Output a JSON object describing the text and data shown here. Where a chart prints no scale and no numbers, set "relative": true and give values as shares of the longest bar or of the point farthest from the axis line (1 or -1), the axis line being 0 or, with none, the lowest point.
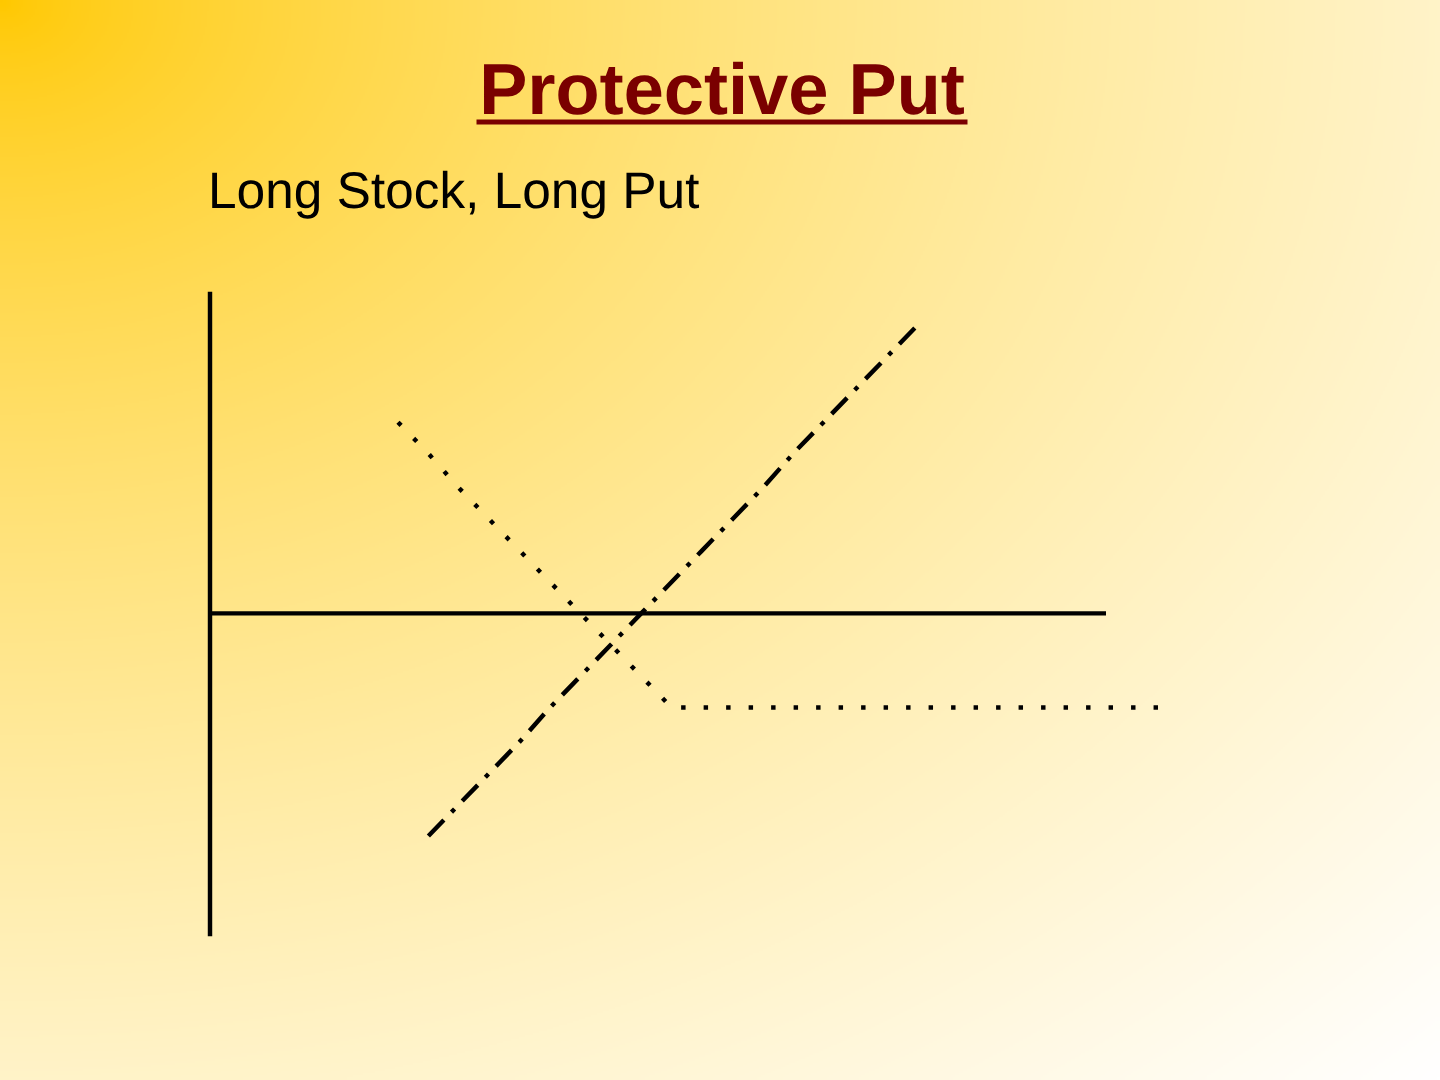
{
  "chart_data": {
    "type": "line",
    "title": "Protective Put",
    "subtitle": "Long Stock, Long Put",
    "relative": true,
    "categories": [
      null,
      null,
      null,
      null,
      null,
      null,
      null,
      null,
      null,
      null,
      null,
      null,
      null,
      null,
      null,
      null,
      null,
      null,
      null,
      null,
      null,
      null,
      null,
      null,
      null,
      null
    ],
    "series": [
      {
        "color": "#000000",
        "line_style": "dashdot",
        "values": [
          null,
          -0.78,
          -0.67,
          -0.56,
          -0.45,
          -0.33,
          -0.22,
          -0.11,
          0,
          0.11,
          0.22,
          0.33,
          0.44,
          0.56,
          0.67,
          0.78,
          0.89,
          1.0,
          null,
          null,
          null,
          null,
          null,
          null,
          null,
          null
        ]
      },
      {
        "color": "#000000",
        "line_style": "dotted",
        "values": [
          0.67,
          0.56,
          0.44,
          0.33,
          0.22,
          0.11,
          0,
          -0.11,
          -0.22,
          -0.33,
          -0.33,
          -0.33,
          -0.33,
          -0.33,
          -0.33,
          -0.33,
          -0.33,
          -0.33,
          -0.33,
          -0.33,
          -0.33,
          -0.33,
          -0.33,
          -0.33,
          -0.33,
          -0.33
        ]
      }
    ]
  }
}
